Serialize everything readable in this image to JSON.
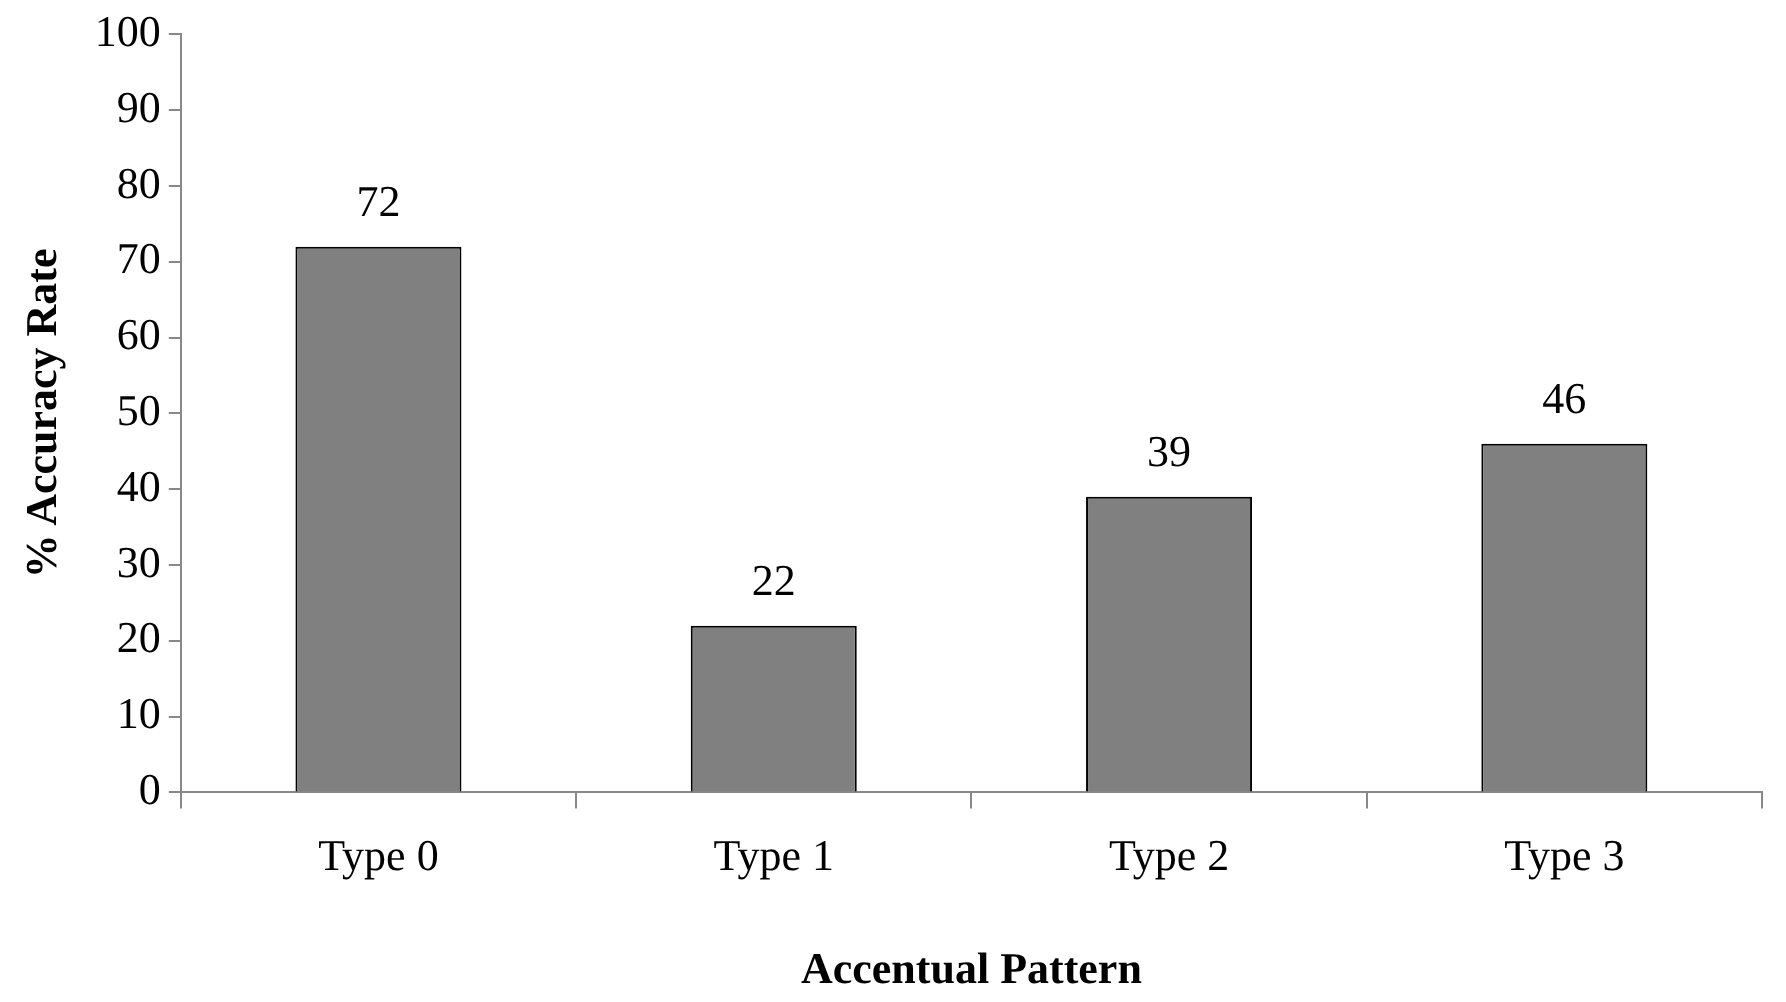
{
  "chart_data": {
    "type": "bar",
    "xlabel": "Accentual Pattern",
    "ylabel": "% Accuracy Rate",
    "categories": [
      "Type 0",
      "Type 1",
      "Type 2",
      "Type 3"
    ],
    "values": [
      72,
      22,
      39,
      46
    ],
    "color": "#808080",
    "ylim": [
      0,
      100
    ],
    "yticks": [
      0,
      10,
      20,
      30,
      40,
      50,
      60,
      70,
      80,
      90,
      100
    ],
    "grid": false,
    "legend": false,
    "data_labels": true
  }
}
